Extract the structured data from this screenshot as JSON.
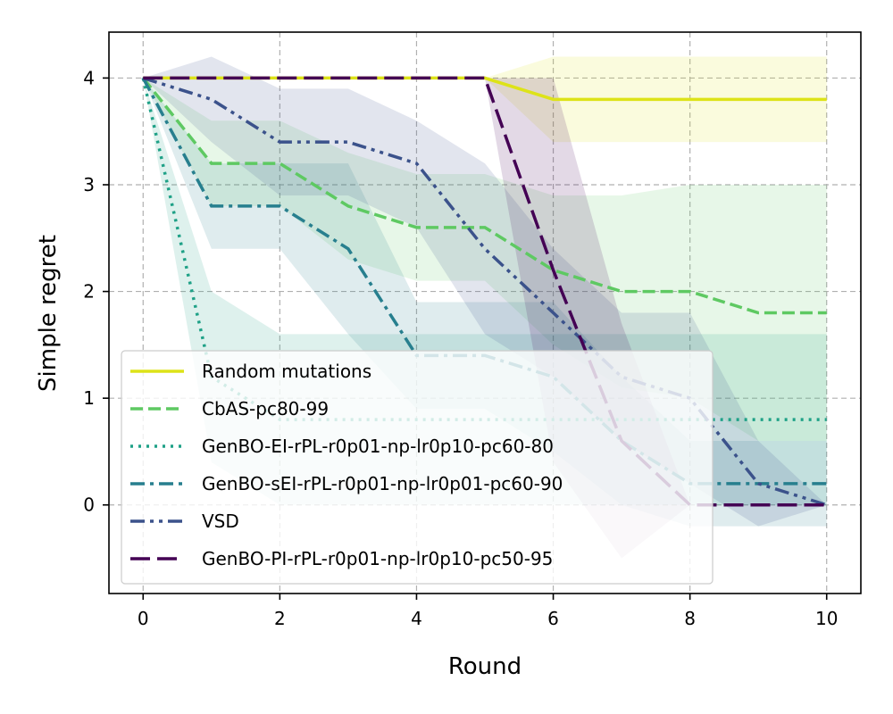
{
  "chart_data": {
    "type": "line",
    "title": "",
    "xlabel": "Round",
    "ylabel": "Simple regret",
    "xlim": [
      -0.5,
      10.5
    ],
    "ylim": [
      -0.83,
      4.43
    ],
    "xticks": [
      0,
      2,
      4,
      6,
      8,
      10
    ],
    "yticks": [
      0,
      1,
      2,
      3,
      4
    ],
    "grid": true,
    "legend_position": "lower-left",
    "x": [
      0,
      1,
      2,
      3,
      4,
      5,
      6,
      7,
      8,
      9,
      10
    ],
    "series": [
      {
        "name": "Random mutations",
        "color": "#dde318",
        "dash": "solid",
        "values": [
          4,
          4,
          4,
          4,
          4,
          4,
          3.8,
          3.8,
          3.8,
          3.8,
          3.8
        ],
        "lower": [
          4,
          4,
          4,
          4,
          4,
          4,
          3.4,
          3.4,
          3.4,
          3.4,
          3.4
        ],
        "upper": [
          4,
          4,
          4,
          4,
          4,
          4,
          4.2,
          4.2,
          4.2,
          4.2,
          4.2
        ]
      },
      {
        "name": "CbAS-pc80-99",
        "color": "#5ec962",
        "dash": "dashed",
        "values": [
          4,
          3.2,
          3.2,
          2.8,
          2.6,
          2.6,
          2.2,
          2.0,
          2.0,
          1.8,
          1.8
        ],
        "lower": [
          4,
          2.8,
          2.8,
          2.3,
          2.1,
          2.1,
          1.5,
          1.1,
          1.0,
          0.6,
          0.6
        ],
        "upper": [
          4,
          3.6,
          3.6,
          3.3,
          3.1,
          3.1,
          2.9,
          2.9,
          3.0,
          3.0,
          3.0
        ]
      },
      {
        "name": "GenBO-EI-rPL-r0p01-np-lr0p10-pc60-80",
        "color": "#1fa187",
        "dash": "dotted",
        "values": [
          4,
          1.2,
          0.8,
          0.8,
          0.8,
          0.8,
          0.8,
          0.8,
          0.8,
          0.8,
          0.8
        ],
        "lower": [
          4,
          0.4,
          0.0,
          0.0,
          0.0,
          0.0,
          0.0,
          0.0,
          0.0,
          0.0,
          0.0
        ],
        "upper": [
          4,
          2.0,
          1.6,
          1.6,
          1.6,
          1.6,
          1.6,
          1.6,
          1.6,
          1.6,
          1.6
        ]
      },
      {
        "name": "GenBO-sEI-rPL-r0p01-np-lr0p01-pc60-90",
        "color": "#277f8e",
        "dash": "dashdot",
        "values": [
          4,
          2.8,
          2.8,
          2.4,
          1.4,
          1.4,
          1.2,
          0.6,
          0.2,
          0.2,
          0.2
        ],
        "lower": [
          4,
          2.4,
          2.4,
          1.6,
          0.9,
          0.9,
          0.5,
          0.0,
          -0.2,
          -0.2,
          -0.2
        ],
        "upper": [
          4,
          3.2,
          3.2,
          3.2,
          1.9,
          1.9,
          1.9,
          1.2,
          0.6,
          0.6,
          0.6
        ]
      },
      {
        "name": "VSD",
        "color": "#3b528b",
        "dash": "dashdotdot",
        "values": [
          4,
          3.8,
          3.4,
          3.4,
          3.2,
          2.4,
          1.8,
          1.2,
          1.0,
          0.2,
          0.0
        ],
        "lower": [
          4,
          3.4,
          2.9,
          2.9,
          2.6,
          1.6,
          1.2,
          0.6,
          0.2,
          -0.2,
          0.0
        ],
        "upper": [
          4,
          4.2,
          3.9,
          3.9,
          3.6,
          3.2,
          2.4,
          1.8,
          1.8,
          0.6,
          0.0
        ]
      },
      {
        "name": "GenBO-PI-rPL-r0p01-np-lr0p10-pc50-95",
        "color": "#440154",
        "dash": "longdash",
        "values": [
          4,
          4,
          4,
          4,
          4,
          4,
          2.2,
          0.6,
          0.0,
          0.0,
          0.0
        ],
        "lower": [
          4,
          4,
          4,
          4,
          4,
          4,
          0.4,
          -0.5,
          0.0,
          0.0,
          0.0
        ],
        "upper": [
          4,
          4,
          4,
          4,
          4,
          4,
          4.0,
          1.7,
          0.0,
          0.0,
          0.0
        ]
      }
    ]
  }
}
